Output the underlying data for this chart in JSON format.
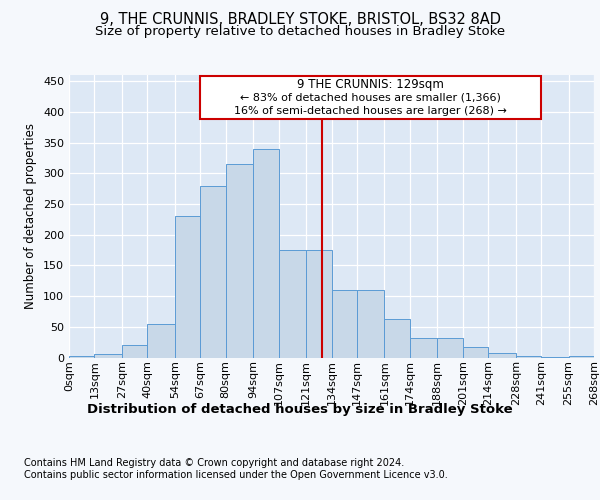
{
  "title": "9, THE CRUNNIS, BRADLEY STOKE, BRISTOL, BS32 8AD",
  "subtitle": "Size of property relative to detached houses in Bradley Stoke",
  "xlabel": "Distribution of detached houses by size in Bradley Stoke",
  "ylabel": "Number of detached properties",
  "footnote1": "Contains HM Land Registry data © Crown copyright and database right 2024.",
  "footnote2": "Contains public sector information licensed under the Open Government Licence v3.0.",
  "annotation_title": "9 THE CRUNNIS: 129sqm",
  "annotation_line1": "← 83% of detached houses are smaller (1,366)",
  "annotation_line2": "16% of semi-detached houses are larger (268) →",
  "property_size": 129,
  "bin_edges": [
    0,
    13,
    27,
    40,
    54,
    67,
    80,
    94,
    107,
    121,
    134,
    147,
    161,
    174,
    188,
    201,
    214,
    228,
    241,
    255,
    268
  ],
  "bin_labels": [
    "0sqm",
    "13sqm",
    "27sqm",
    "40sqm",
    "54sqm",
    "67sqm",
    "80sqm",
    "94sqm",
    "107sqm",
    "121sqm",
    "134sqm",
    "147sqm",
    "161sqm",
    "174sqm",
    "188sqm",
    "201sqm",
    "214sqm",
    "228sqm",
    "241sqm",
    "255sqm",
    "268sqm"
  ],
  "bar_heights": [
    2,
    5,
    20,
    55,
    230,
    280,
    315,
    340,
    175,
    175,
    110,
    110,
    62,
    32,
    32,
    17,
    8,
    3,
    1,
    3
  ],
  "bar_color": "#c8d8e8",
  "bar_edge_color": "#5b9bd5",
  "vline_color": "#cc0000",
  "vline_x": 129,
  "ylim": [
    0,
    460
  ],
  "yticks": [
    0,
    50,
    100,
    150,
    200,
    250,
    300,
    350,
    400,
    450
  ],
  "fig_bg_color": "#f5f8fc",
  "plot_bg_color": "#dde8f5",
  "grid_color": "#ffffff",
  "title_fontsize": 10.5,
  "subtitle_fontsize": 9.5,
  "xlabel_fontsize": 9.5,
  "ylabel_fontsize": 8.5,
  "tick_fontsize": 8,
  "footnote_fontsize": 7,
  "annot_fontsize": 8.5
}
